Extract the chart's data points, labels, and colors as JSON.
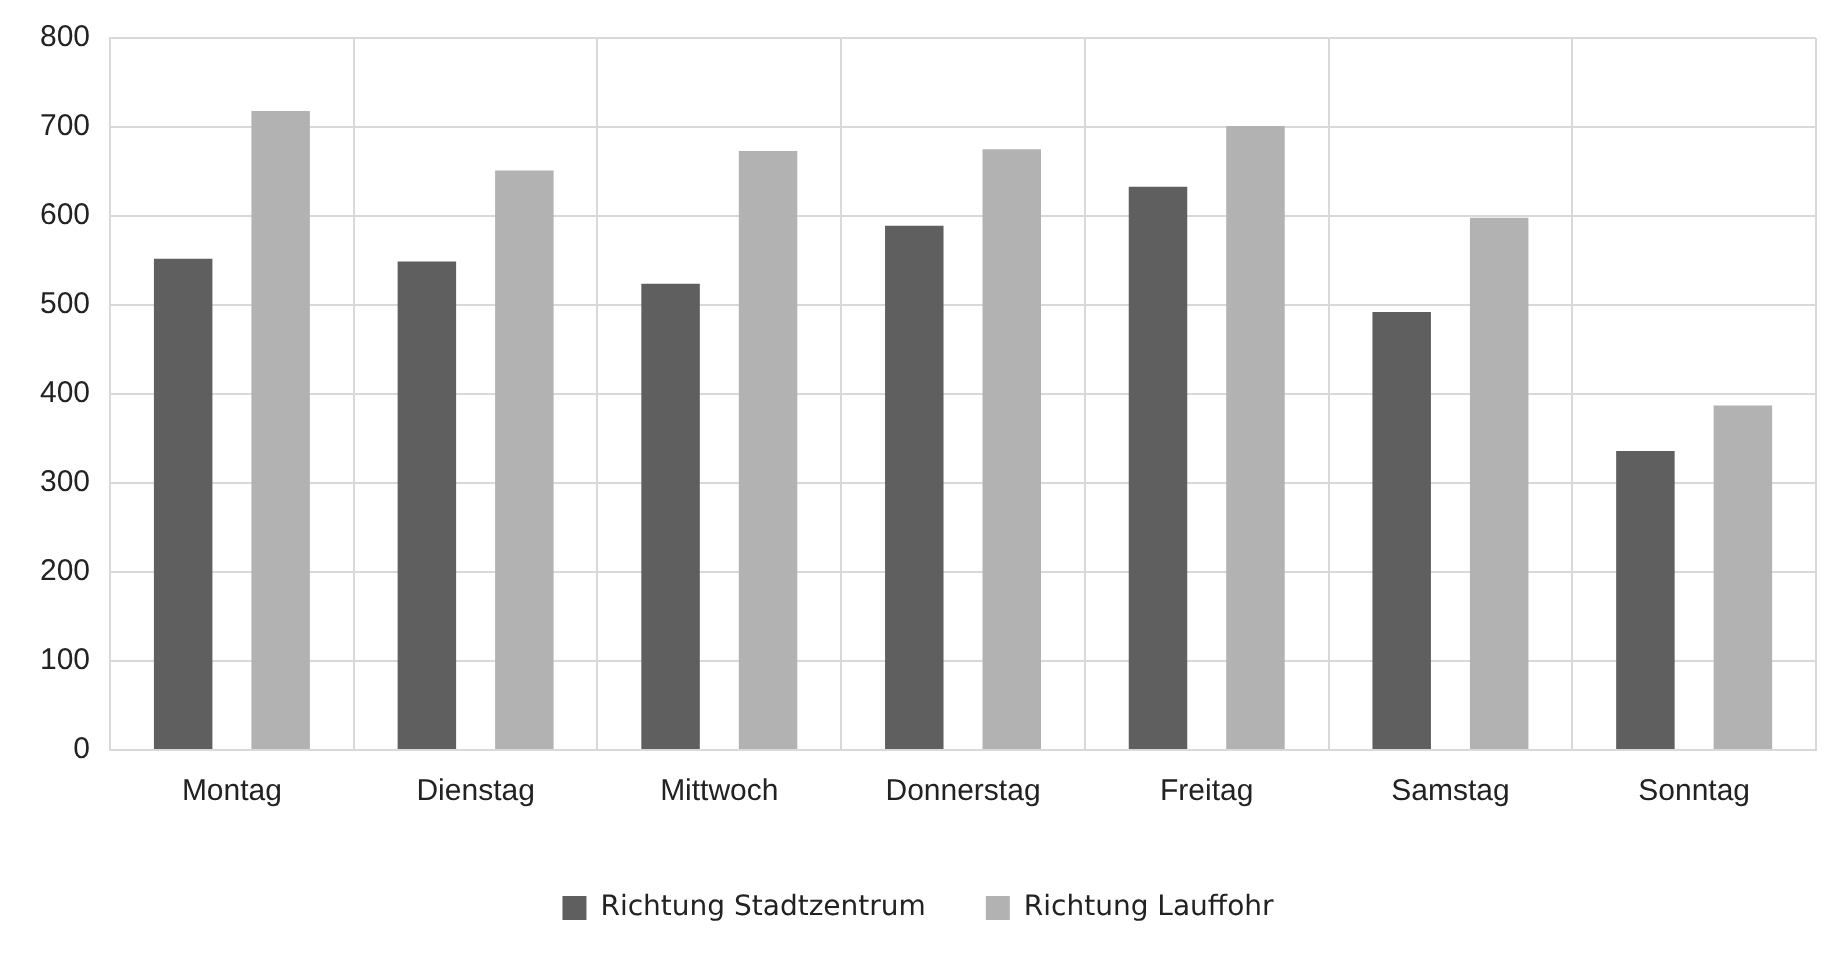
{
  "chart_data": {
    "type": "bar",
    "categories": [
      "Montag",
      "Dienstag",
      "Mittwoch",
      "Donnerstag",
      "Freitag",
      "Samstag",
      "Sonntag"
    ],
    "series": [
      {
        "name": "Richtung Stadtzentrum",
        "color": "#5f5f5f",
        "values": [
          552,
          549,
          524,
          589,
          633,
          492,
          336
        ]
      },
      {
        "name": "Richtung Lauffohr",
        "color": "#b2b2b2",
        "values": [
          718,
          651,
          673,
          675,
          701,
          598,
          387
        ]
      }
    ],
    "ylim": [
      0,
      800
    ],
    "yticks": [
      0,
      100,
      200,
      300,
      400,
      500,
      600,
      700,
      800
    ],
    "grid": true,
    "legend": "bottom"
  }
}
